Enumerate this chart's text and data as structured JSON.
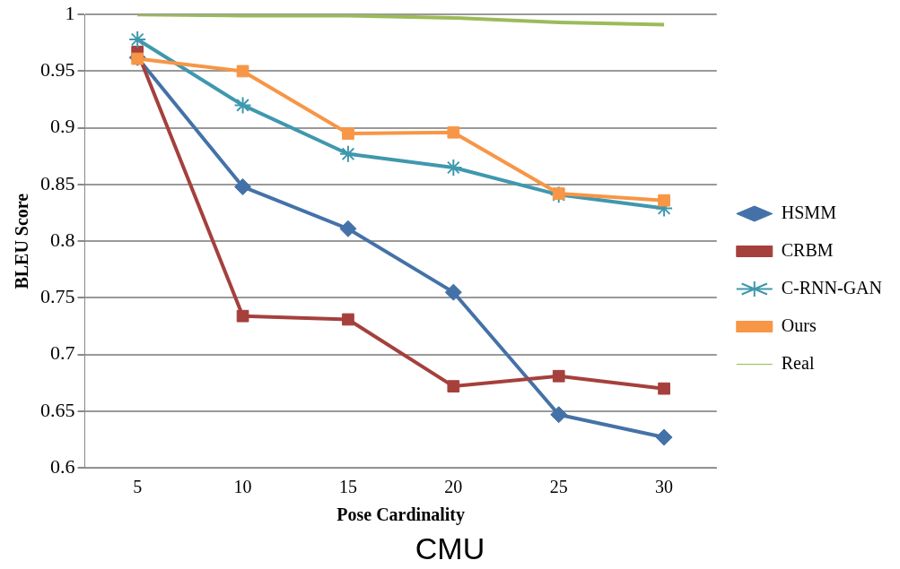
{
  "chart_data": {
    "type": "line",
    "title": "CMU",
    "xlabel": "Pose Cardinality",
    "ylabel": "BLEU Score",
    "categories": [
      "5",
      "10",
      "15",
      "20",
      "25",
      "30"
    ],
    "series": [
      {
        "name": "HSMM",
        "color": "#4472a8",
        "marker": "diamond",
        "values": [
          0.962,
          0.848,
          0.811,
          0.755,
          0.647,
          0.627
        ]
      },
      {
        "name": "CRBM",
        "color": "#a5403d",
        "marker": "square",
        "values": [
          0.967,
          0.734,
          0.731,
          0.672,
          0.681,
          0.67
        ]
      },
      {
        "name": "C-RNN-GAN",
        "color": "#3f98ae",
        "marker": "cross",
        "values": [
          0.978,
          0.92,
          0.877,
          0.865,
          0.841,
          0.829
        ]
      },
      {
        "name": "Ours",
        "color": "#f79646",
        "marker": "square",
        "values": [
          0.961,
          0.95,
          0.895,
          0.896,
          0.842,
          0.836
        ]
      },
      {
        "name": "Real",
        "color": "#9bbb59",
        "marker": "none",
        "values": [
          1.0,
          0.999,
          0.999,
          0.997,
          0.993,
          0.991
        ]
      }
    ],
    "ylim": [
      0.6,
      1
    ],
    "yticks": [
      0.6,
      0.65,
      0.7,
      0.75,
      0.8,
      0.85,
      0.9,
      0.95,
      1
    ],
    "grid": "y",
    "legend": "right"
  }
}
